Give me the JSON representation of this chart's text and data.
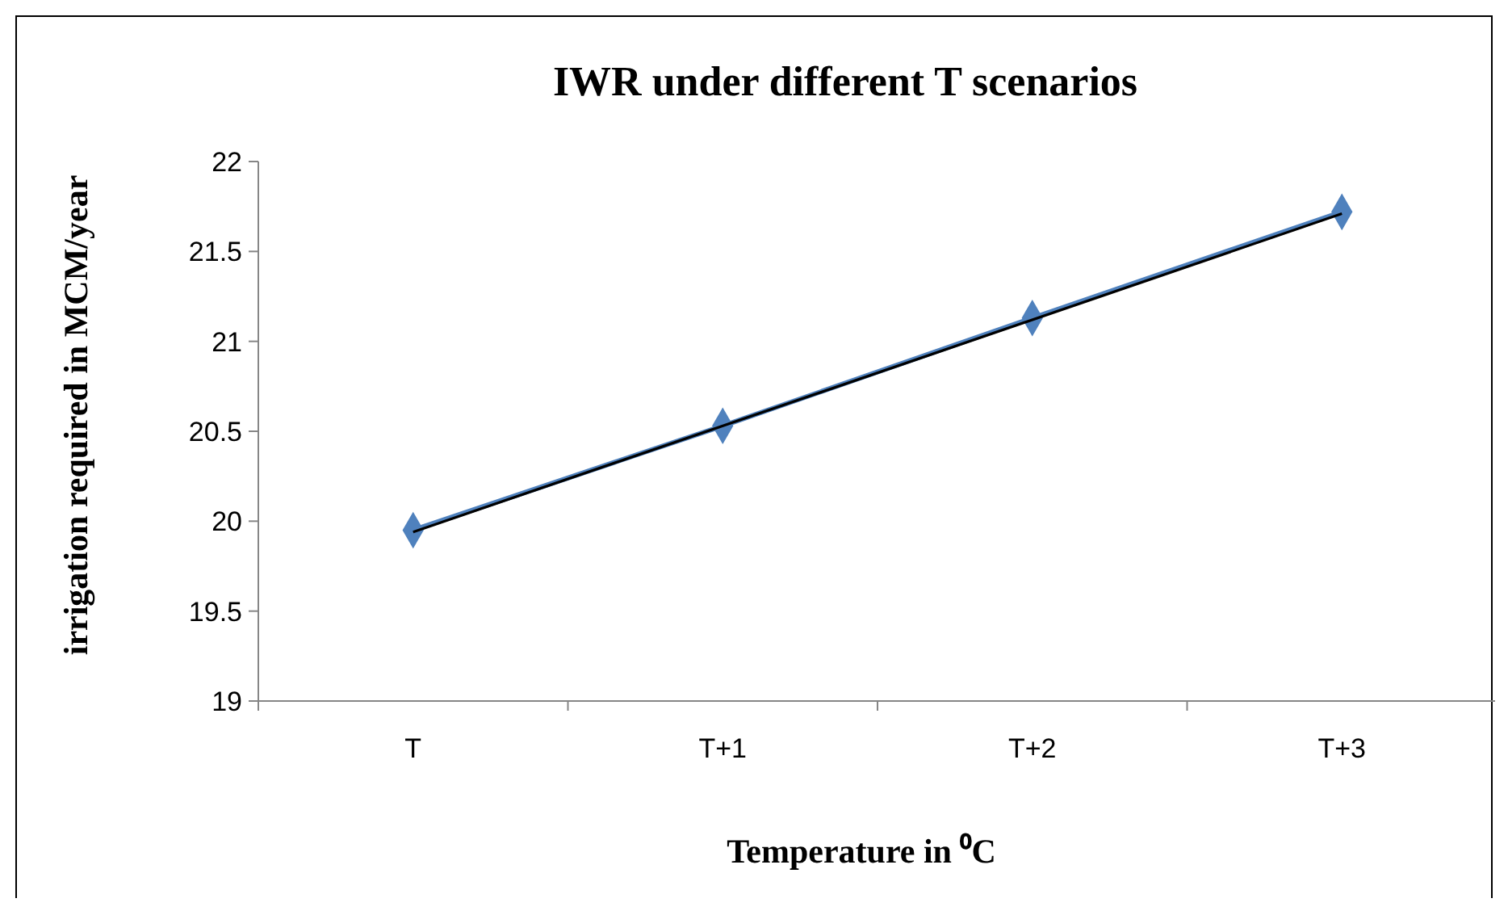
{
  "chart_data": {
    "type": "line",
    "title": "IWR under different T scenarios",
    "xlabel": "Temperature in ⁰C",
    "ylabel": "irrigation required in MCM/year",
    "categories": [
      "T",
      "T+1",
      "T+2",
      "T+3"
    ],
    "series": [
      {
        "color": "#4f81bd",
        "values": [
          19.95,
          20.53,
          21.13,
          21.72
        ],
        "marker": "diamond"
      },
      {
        "type": "line",
        "x": [
          "T",
          "T+3"
        ],
        "color": "#000000",
        "values": [
          19.94,
          21.71
        ],
        "marker": "none"
      }
    ],
    "ylim": [
      19,
      22
    ],
    "yticks": [
      19,
      19.5,
      20,
      20.5,
      21,
      21.5,
      22
    ],
    "grid": false,
    "line_style": "solid"
  }
}
